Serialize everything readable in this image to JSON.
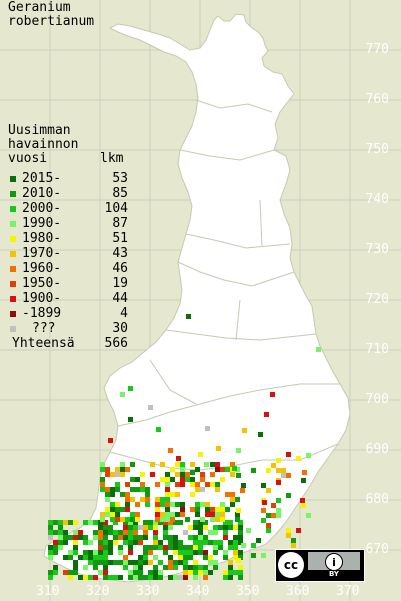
{
  "title": {
    "line1": "Geranium",
    "line2": "robertianum"
  },
  "legend": {
    "header": [
      "Uusimman",
      "havainnon",
      "vuosi"
    ],
    "count_header": "lkm",
    "rows": [
      {
        "label": "2015-",
        "count": "53",
        "color": "#0a6e0a"
      },
      {
        "label": "2010-",
        "count": "85",
        "color": "#119a11"
      },
      {
        "label": "2000-",
        "count": "104",
        "color": "#19c819"
      },
      {
        "label": "1990-",
        "count": "87",
        "color": "#7af36b"
      },
      {
        "label": "1980-",
        "count": "51",
        "color": "#f5f500"
      },
      {
        "label": "1970-",
        "count": "43",
        "color": "#f5c200"
      },
      {
        "label": "1960-",
        "count": "46",
        "color": "#f07000"
      },
      {
        "label": "1950-",
        "count": "19",
        "color": "#e04000"
      },
      {
        "label": "1900-",
        "count": "44",
        "color": "#d81010"
      },
      {
        "label": "-1899",
        "count": "4",
        "color": "#8a1010"
      },
      {
        "label": "???",
        "count": "30",
        "color": "#c0c0c0"
      }
    ],
    "total_label": "Yhteensä",
    "total_count": "566"
  },
  "axes": {
    "y_ticks": [
      "770",
      "760",
      "750",
      "740",
      "730",
      "720",
      "710",
      "700",
      "690",
      "680",
      "670"
    ],
    "x_ticks": [
      "310",
      "320",
      "330",
      "340",
      "350",
      "360",
      "370"
    ]
  },
  "colors": {
    "background": "#e5e8cf",
    "land": "#ffffff",
    "grid": "#ccd0b8",
    "borders": "#c6c9b0"
  },
  "license": {
    "cc": "cc",
    "by_icon": "person-icon",
    "by_label": "BY"
  }
}
